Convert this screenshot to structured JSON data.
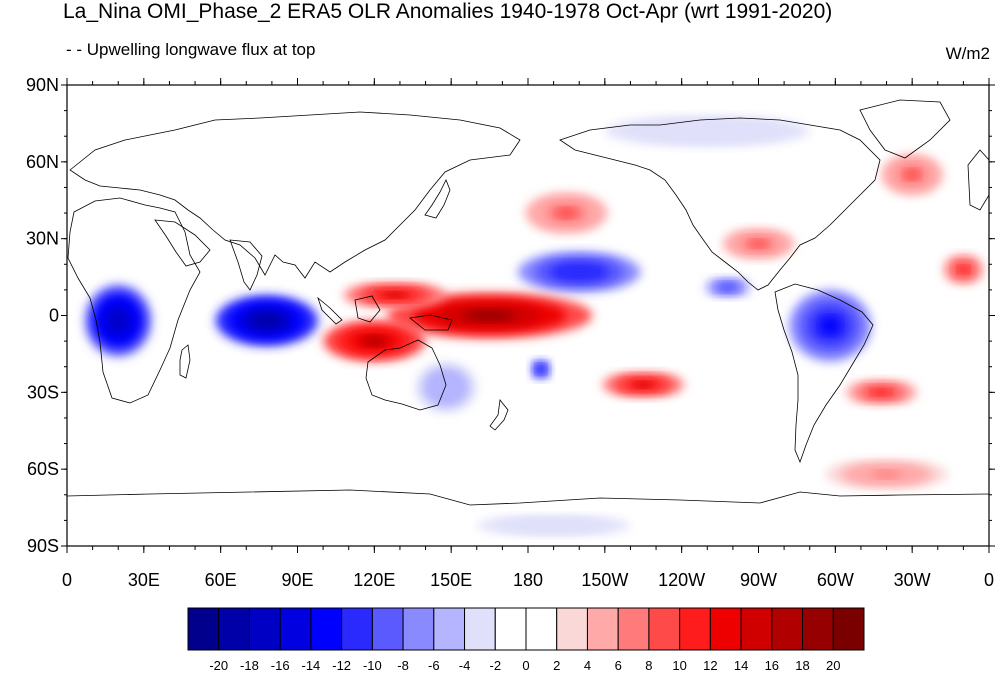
{
  "title": "La_Nina OMI_Phase_2 ERA5 OLR Anomalies 1940-1978 Oct-Apr (wrt 1991-2020)",
  "subtitle": "- - Upwelling longwave flux at top",
  "units": "W/m2",
  "map": {
    "projection": "cylindrical-equidistant",
    "lon_range": [
      0,
      360
    ],
    "lat_range": [
      -90,
      90
    ],
    "lat_tick_labels": [
      {
        "lat": 90,
        "label": "90N"
      },
      {
        "lat": 60,
        "label": "60N"
      },
      {
        "lat": 30,
        "label": "30N"
      },
      {
        "lat": 0,
        "label": "0"
      },
      {
        "lat": -30,
        "label": "30S"
      },
      {
        "lat": -60,
        "label": "60S"
      },
      {
        "lat": -90,
        "label": "90S"
      }
    ],
    "lon_tick_labels": [
      {
        "lon": 0,
        "label": "0"
      },
      {
        "lon": 30,
        "label": "30E"
      },
      {
        "lon": 60,
        "label": "60E"
      },
      {
        "lon": 90,
        "label": "90E"
      },
      {
        "lon": 120,
        "label": "120E"
      },
      {
        "lon": 150,
        "label": "150E"
      },
      {
        "lon": 180,
        "label": "180"
      },
      {
        "lon": 210,
        "label": "150W"
      },
      {
        "lon": 240,
        "label": "120W"
      },
      {
        "lon": 270,
        "label": "90W"
      },
      {
        "lon": 300,
        "label": "60W"
      },
      {
        "lon": 330,
        "label": "30W"
      },
      {
        "lon": 360,
        "label": "0"
      }
    ],
    "features": [
      {
        "name": "africa-negative-anomaly",
        "lon": 20,
        "lat": -2,
        "rlon": 13,
        "rlat": 14,
        "value": -18
      },
      {
        "name": "indian-ocean-negative-anomaly",
        "lon": 78,
        "lat": -2,
        "rlon": 20,
        "rlat": 10,
        "value": -20
      },
      {
        "name": "north-pacific-negative-anomaly",
        "lon": 200,
        "lat": 17,
        "rlon": 24,
        "rlat": 8,
        "value": -12
      },
      {
        "name": "south-america-negative-anomaly",
        "lon": 298,
        "lat": -4,
        "rlon": 16,
        "rlat": 14,
        "value": -14
      },
      {
        "name": "central-america-negative-anomaly",
        "lon": 258,
        "lat": 11,
        "rlon": 9,
        "rlat": 4,
        "value": -10
      },
      {
        "name": "south-pacific-small-negative",
        "lon": 185,
        "lat": -21,
        "rlon": 4,
        "rlat": 4,
        "value": -12
      },
      {
        "name": "australia-negative-anomaly",
        "lon": 148,
        "lat": -28,
        "rlon": 12,
        "rlat": 10,
        "value": -6
      },
      {
        "name": "maritime-continent-positive-anomaly",
        "lon": 165,
        "lat": 0,
        "rlon": 40,
        "rlat": 9,
        "value": 18
      },
      {
        "name": "eastern-indian-ocean-positive-anomaly",
        "lon": 120,
        "lat": -10,
        "rlon": 20,
        "rlat": 8,
        "value": 16
      },
      {
        "name": "west-pacific-positive-anomaly",
        "lon": 128,
        "lat": 8,
        "rlon": 20,
        "rlat": 5,
        "value": 14
      },
      {
        "name": "south-pacific-positive-anomaly",
        "lon": 225,
        "lat": -27,
        "rlon": 16,
        "rlat": 5,
        "value": 14
      },
      {
        "name": "south-atlantic-positive-anomaly",
        "lon": 318,
        "lat": -30,
        "rlon": 14,
        "rlat": 5,
        "value": 10
      },
      {
        "name": "north-pacific-positive-anomaly",
        "lon": 195,
        "lat": 40,
        "rlon": 16,
        "rlat": 8,
        "value": 8
      },
      {
        "name": "north-atlantic-positive-anomaly",
        "lon": 330,
        "lat": 55,
        "rlon": 12,
        "rlat": 8,
        "value": 8
      },
      {
        "name": "gulf-of-mexico-positive-anomaly",
        "lon": 270,
        "lat": 28,
        "rlon": 14,
        "rlat": 6,
        "value": 8
      },
      {
        "name": "atlantic-positive-anomaly",
        "lon": 350,
        "lat": 18,
        "rlon": 8,
        "rlat": 6,
        "value": 10
      },
      {
        "name": "southern-ocean-positive-anomaly",
        "lon": 320,
        "lat": -62,
        "rlon": 24,
        "rlat": 6,
        "value": 6
      },
      {
        "name": "arctic-negative-anomaly",
        "lon": 250,
        "lat": 72,
        "rlon": 40,
        "rlat": 6,
        "value": -4
      },
      {
        "name": "antarctic-negative-anomaly",
        "lon": 190,
        "lat": -82,
        "rlon": 30,
        "rlat": 4,
        "value": -4
      }
    ]
  },
  "colorbar": {
    "levels": [
      "-20",
      "-18",
      "-16",
      "-14",
      "-12",
      "-10",
      "-8",
      "-6",
      "-4",
      "-2",
      "0",
      "2",
      "4",
      "6",
      "8",
      "10",
      "12",
      "14",
      "16",
      "18",
      "20"
    ],
    "colors": [
      "#00008c",
      "#0000a8",
      "#0000c4",
      "#0000e0",
      "#0000ff",
      "#2a2aff",
      "#5a5aff",
      "#8a8aff",
      "#b4b4ff",
      "#e0e0fa",
      "#ffffff",
      "#ffffff",
      "#fad8d8",
      "#ffa9a9",
      "#ff7a7a",
      "#ff4a4a",
      "#ff1c1c",
      "#ee0000",
      "#d00000",
      "#b00000",
      "#960000",
      "#7a0000"
    ]
  }
}
